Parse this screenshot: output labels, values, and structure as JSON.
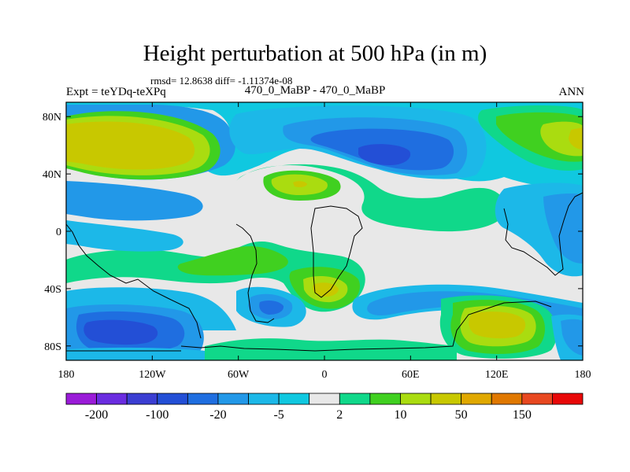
{
  "title": "Height perturbation at 500 hPa (in m)",
  "stats": "rmsd= 12.8638 diff= -1.11374e-08",
  "left_label": "Expt = teYDq-teXPq",
  "center_label": "470_0_MaBP - 470_0_MaBP",
  "right_label": "ANN",
  "map": {
    "lon_range": [
      -180,
      180
    ],
    "lat_range": [
      -90,
      90
    ],
    "x_ticks": [
      {
        "lon": -180,
        "label": "180"
      },
      {
        "lon": -120,
        "label": "120W"
      },
      {
        "lon": -60,
        "label": "60W"
      },
      {
        "lon": 0,
        "label": "0"
      },
      {
        "lon": 60,
        "label": "60E"
      },
      {
        "lon": 120,
        "label": "120E"
      },
      {
        "lon": 180,
        "label": "180"
      }
    ],
    "y_ticks": [
      {
        "lat": 80,
        "label": "80N"
      },
      {
        "lat": 40,
        "label": "40N"
      },
      {
        "lat": 0,
        "label": "0"
      },
      {
        "lat": -40,
        "label": "40S"
      },
      {
        "lat": -80,
        "label": "80S"
      }
    ]
  },
  "colorbar": {
    "colors": [
      "#9a1bd8",
      "#6a2ce0",
      "#3b3ed2",
      "#234fd6",
      "#1f6ee0",
      "#2298e8",
      "#1cb8e8",
      "#10c8e0",
      "#e8e8e8",
      "#10d88a",
      "#40d020",
      "#aadc10",
      "#c8c800",
      "#e0a800",
      "#e07800",
      "#e84820",
      "#e80808"
    ],
    "labels": [
      {
        "boundary": 1,
        "text": "-200"
      },
      {
        "boundary": 3,
        "text": "-100"
      },
      {
        "boundary": 5,
        "text": "-20"
      },
      {
        "boundary": 7,
        "text": "-5"
      },
      {
        "boundary": 9,
        "text": "2"
      },
      {
        "boundary": 11,
        "text": "10"
      },
      {
        "boundary": 13,
        "text": "50"
      },
      {
        "boundary": 15,
        "text": "150"
      }
    ]
  }
}
